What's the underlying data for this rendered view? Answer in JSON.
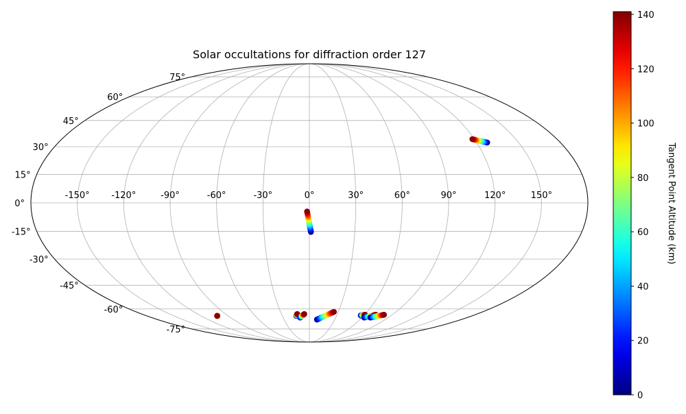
{
  "chart_data": {
    "type": "scatter",
    "projection": "mollweide",
    "title": "Solar occultations for diffraction order 127",
    "grid": true,
    "lon_ticks": [
      {
        "value": -150,
        "label": "-150°"
      },
      {
        "value": -120,
        "label": "-120°"
      },
      {
        "value": -90,
        "label": "-90°"
      },
      {
        "value": -60,
        "label": "-60°"
      },
      {
        "value": -30,
        "label": "-30°"
      },
      {
        "value": 0,
        "label": "0°"
      },
      {
        "value": 30,
        "label": "30°"
      },
      {
        "value": 60,
        "label": "60°"
      },
      {
        "value": 90,
        "label": "90°"
      },
      {
        "value": 120,
        "label": "120°"
      },
      {
        "value": 150,
        "label": "150°"
      }
    ],
    "lat_ticks": [
      {
        "value": 75,
        "label": "75°"
      },
      {
        "value": 60,
        "label": "60°"
      },
      {
        "value": 45,
        "label": "45°"
      },
      {
        "value": 30,
        "label": "30°"
      },
      {
        "value": 15,
        "label": "15°"
      },
      {
        "value": 0,
        "label": "0°"
      },
      {
        "value": -15,
        "label": "-15°"
      },
      {
        "value": -30,
        "label": "-30°"
      },
      {
        "value": -45,
        "label": "-45°"
      },
      {
        "value": -60,
        "label": "-60°"
      },
      {
        "value": -75,
        "label": "-75°"
      }
    ],
    "colorbar": {
      "label": "Tangent Point Altitude (km)",
      "colormap": "jet",
      "range": [
        0,
        141
      ],
      "ticks": [
        {
          "value": 0,
          "label": "0"
        },
        {
          "value": 20,
          "label": "20"
        },
        {
          "value": 40,
          "label": "40"
        },
        {
          "value": 60,
          "label": "60"
        },
        {
          "value": 80,
          "label": "80"
        },
        {
          "value": 100,
          "label": "100"
        },
        {
          "value": 120,
          "label": "120"
        },
        {
          "value": 140,
          "label": "140"
        }
      ]
    },
    "occultations": [
      {
        "start_lon": 118.5,
        "start_lat": 34.2,
        "end_lon": 127.5,
        "end_lat": 32.3
      },
      {
        "start_lon": -1.5,
        "start_lat": -4.5,
        "end_lon": 1.0,
        "end_lat": -15.3
      },
      {
        "start_lon": -102.0,
        "start_lat": -64.8,
        "end_lon": -102.0,
        "end_lat": -64.8
      },
      {
        "start_lon": -13.0,
        "start_lat": -63.5,
        "end_lon": -14.5,
        "end_lat": -64.8
      },
      {
        "start_lon": -5.5,
        "start_lat": -63.5,
        "end_lon": -10.5,
        "end_lat": -66.0
      },
      {
        "start_lon": 25.5,
        "start_lat": -62.0,
        "end_lon": 9.0,
        "end_lat": -67.5
      },
      {
        "start_lon": 60.5,
        "start_lat": -64.0,
        "end_lon": 56.5,
        "end_lat": -64.5
      },
      {
        "start_lon": 72.0,
        "start_lat": -64.0,
        "end_lon": 62.5,
        "end_lat": -66.0
      },
      {
        "start_lon": 81.0,
        "start_lat": -64.0,
        "end_lon": 69.5,
        "end_lat": -66.0
      }
    ]
  }
}
